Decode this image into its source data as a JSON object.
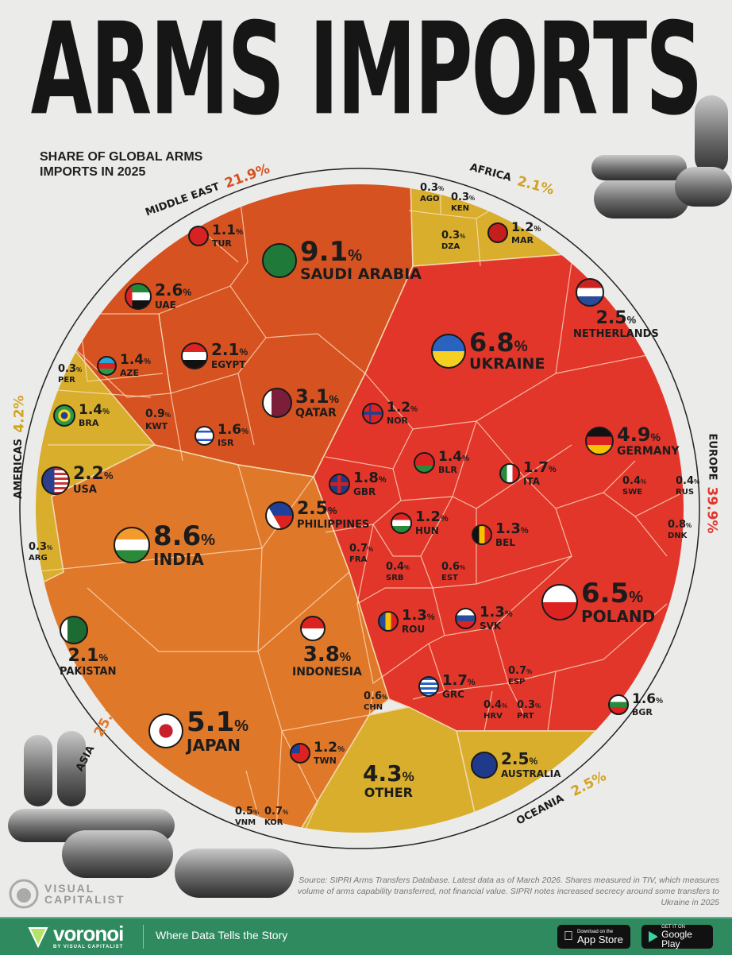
{
  "title": "ARMS IMPORTS",
  "subtitle": "SHARE OF GLOBAL ARMS IMPORTS IN 2025",
  "chart_data": {
    "type": "voronoi treemap",
    "title": "ARMS IMPORTS",
    "subtitle": "SHARE OF GLOBAL ARMS IMPORTS IN 2025",
    "unit": "%",
    "regions": [
      {
        "name": "MIDDLE EAST",
        "value": "21.9%",
        "color": "#d65221",
        "countries": [
          {
            "code": "SAU",
            "name": "SAUDI ARABIA",
            "value": 9.1
          },
          {
            "code": "QAT",
            "name": "QATAR",
            "value": 3.1
          },
          {
            "code": "UAE",
            "name": "UAE",
            "value": 2.6
          },
          {
            "code": "EGY",
            "name": "EGYPT",
            "value": 2.1
          },
          {
            "code": "ISR",
            "name": "ISR",
            "value": 1.6
          },
          {
            "code": "AZE",
            "name": "AZE",
            "value": 1.4
          },
          {
            "code": "TUR",
            "name": "TUR",
            "value": 1.1
          },
          {
            "code": "KWT",
            "name": "KWT",
            "value": 0.9
          }
        ]
      },
      {
        "name": "AFRICA",
        "value": "2.1%",
        "color": "#d8ae2c",
        "countries": [
          {
            "code": "MAR",
            "name": "MAR",
            "value": 1.2
          },
          {
            "code": "AGO",
            "name": "AGO",
            "value": 0.3
          },
          {
            "code": "KEN",
            "name": "KEN",
            "value": 0.3
          },
          {
            "code": "DZA",
            "name": "DZA",
            "value": 0.3
          }
        ]
      },
      {
        "name": "AMERICAS",
        "value": "4.2%",
        "color": "#d8ae2c",
        "countries": [
          {
            "code": "USA",
            "name": "USA",
            "value": 2.2
          },
          {
            "code": "BRA",
            "name": "BRA",
            "value": 1.4
          },
          {
            "code": "PER",
            "name": "PER",
            "value": 0.3
          },
          {
            "code": "ARG",
            "name": "ARG",
            "value": 0.3
          }
        ]
      },
      {
        "name": "ASIA",
        "value": "25.1%",
        "color": "#e0782a",
        "countries": [
          {
            "code": "IND",
            "name": "INDIA",
            "value": 8.6
          },
          {
            "code": "JPN",
            "name": "JAPAN",
            "value": 5.1
          },
          {
            "code": "IDN",
            "name": "INDONESIA",
            "value": 3.8
          },
          {
            "code": "PHL",
            "name": "PHILIPPINES",
            "value": 2.5
          },
          {
            "code": "PAK",
            "name": "PAKISTAN",
            "value": 2.1
          },
          {
            "code": "TWN",
            "name": "TWN",
            "value": 1.2
          },
          {
            "code": "KOR",
            "name": "KOR",
            "value": 0.7
          },
          {
            "code": "CHN",
            "name": "CHN",
            "value": 0.6
          },
          {
            "code": "VNM",
            "name": "VNM",
            "value": 0.5
          }
        ]
      },
      {
        "name": "EUROPE",
        "value": "39.9%",
        "color": "#e2362b",
        "countries": [
          {
            "code": "UKR",
            "name": "UKRAINE",
            "value": 6.8
          },
          {
            "code": "POL",
            "name": "POLAND",
            "value": 6.5
          },
          {
            "code": "DEU",
            "name": "GERMANY",
            "value": 4.9
          },
          {
            "code": "NLD",
            "name": "NETHERLANDS",
            "value": 2.5
          },
          {
            "code": "GBR",
            "name": "GBR",
            "value": 1.8
          },
          {
            "code": "ITA",
            "name": "ITA",
            "value": 1.7
          },
          {
            "code": "GRC",
            "name": "GRC",
            "value": 1.7
          },
          {
            "code": "BGR",
            "name": "BGR",
            "value": 1.6
          },
          {
            "code": "BLR",
            "name": "BLR",
            "value": 1.4
          },
          {
            "code": "BEL",
            "name": "BEL",
            "value": 1.3
          },
          {
            "code": "ROU",
            "name": "ROU",
            "value": 1.3
          },
          {
            "code": "SVK",
            "name": "SVK",
            "value": 1.3
          },
          {
            "code": "NOR",
            "name": "NOR",
            "value": 1.2
          },
          {
            "code": "HUN",
            "name": "HUN",
            "value": 1.2
          },
          {
            "code": "DNK",
            "name": "DNK",
            "value": 0.8
          },
          {
            "code": "FRA",
            "name": "FRA",
            "value": 0.7
          },
          {
            "code": "ESP",
            "name": "ESP",
            "value": 0.7
          },
          {
            "code": "EST",
            "name": "EST",
            "value": 0.6
          },
          {
            "code": "SWE",
            "name": "SWE",
            "value": 0.4
          },
          {
            "code": "RUS",
            "name": "RUS",
            "value": 0.4
          },
          {
            "code": "SRB",
            "name": "SRB",
            "value": 0.4
          },
          {
            "code": "HRV",
            "name": "HRV",
            "value": 0.4
          },
          {
            "code": "PRT",
            "name": "PRT",
            "value": 0.3
          }
        ]
      },
      {
        "name": "OCEANIA",
        "value": "2.5%",
        "color": "#d8ae2c",
        "countries": [
          {
            "code": "AUS",
            "name": "AUSTRALIA",
            "value": 2.5
          }
        ]
      },
      {
        "name": "",
        "value": "",
        "color": "#d8ae2c",
        "countries": [
          {
            "code": "OTH",
            "name": "OTHER",
            "value": 4.3
          }
        ]
      }
    ]
  },
  "source": "Source: SIPRI Arms Transfers Database. Latest data as of March 2026. Shares measured in TIV, which measures volume of arms capability transferred, not financial value. SIPRI notes increased secrecy around some transfers to Ukraine in 2025",
  "branding": {
    "vc_logo_line1": "VISUAL",
    "vc_logo_line2": "CAPITALIST",
    "voronoi": "voronoi",
    "voronoi_sub": "BY VISUAL CAPITALIST",
    "tagline": "Where Data Tells the Story",
    "app_store_small": "Download on the",
    "app_store": "App Store",
    "google_play_small": "GET IT ON",
    "google_play": "Google Play"
  }
}
